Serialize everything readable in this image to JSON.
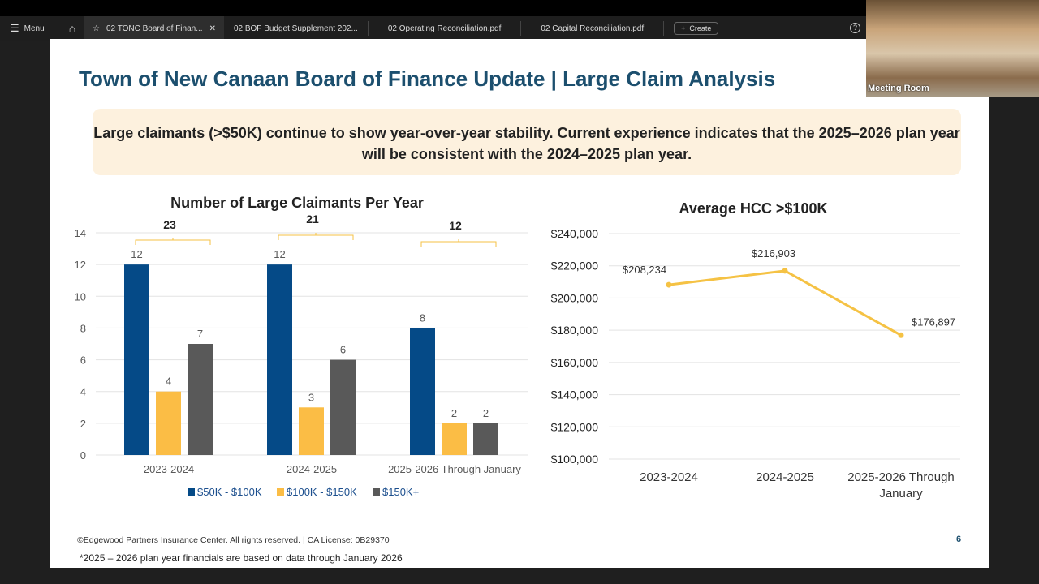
{
  "viewer": {
    "menu_label": "Menu",
    "tabs": [
      {
        "label": "02 TONC Board of Finan...",
        "active": true
      },
      {
        "label": "02 BOF Budget Supplement 202..."
      },
      {
        "label": "02 Operating Reconciliation.pdf"
      },
      {
        "label": "02 Capital Reconciliation.pdf"
      }
    ],
    "create_label": "Create",
    "help": "?"
  },
  "video": {
    "label": "Meeting Room"
  },
  "slide": {
    "title": "Town of New Canaan Board of Finance Update | Large Claim Analysis",
    "callout": "Large claimants (>$50K) continue to show year-over-year stability. Current experience indicates that the 2025–2026 plan year will be consistent with the 2024–2025 plan year.",
    "footer_copyright": "©Edgewood Partners Insurance Center. All rights reserved. | CA License: 0B29370",
    "footnote": "*2025 – 2026 plan year financials are based on data through January 2026",
    "page_number": "6"
  },
  "chart_data": [
    {
      "type": "bar",
      "title": "Number of Large Claimants Per Year",
      "categories": [
        "2023-2024",
        "2024-2025",
        "2025-2026 Through January"
      ],
      "series": [
        {
          "name": "$50K - $100K",
          "color": "#054a87",
          "values": [
            12,
            12,
            8
          ]
        },
        {
          "name": "$100K - $150K",
          "color": "#fbbd45",
          "values": [
            4,
            3,
            2
          ]
        },
        {
          "name": "$150K+",
          "color": "#595959",
          "values": [
            7,
            6,
            2
          ]
        }
      ],
      "totals": [
        23,
        21,
        12
      ],
      "ylim": [
        0,
        14
      ],
      "yticks": [
        0,
        2,
        4,
        6,
        8,
        10,
        12,
        14
      ],
      "grid": true,
      "legend": "bottom"
    },
    {
      "type": "line",
      "title": "Average HCC >$100K",
      "categories": [
        "2023-2024",
        "2024-2025",
        "2025-2026 Through January"
      ],
      "values": [
        208234,
        216903,
        176897
      ],
      "labels": [
        "$208,234",
        "$216,903",
        "$176,897"
      ],
      "color": "#f5c244",
      "ylim": [
        100000,
        240000
      ],
      "yticks": [
        "$100,000",
        "$120,000",
        "$140,000",
        "$160,000",
        "$180,000",
        "$200,000",
        "$220,000",
        "$240,000"
      ],
      "grid": true
    }
  ]
}
